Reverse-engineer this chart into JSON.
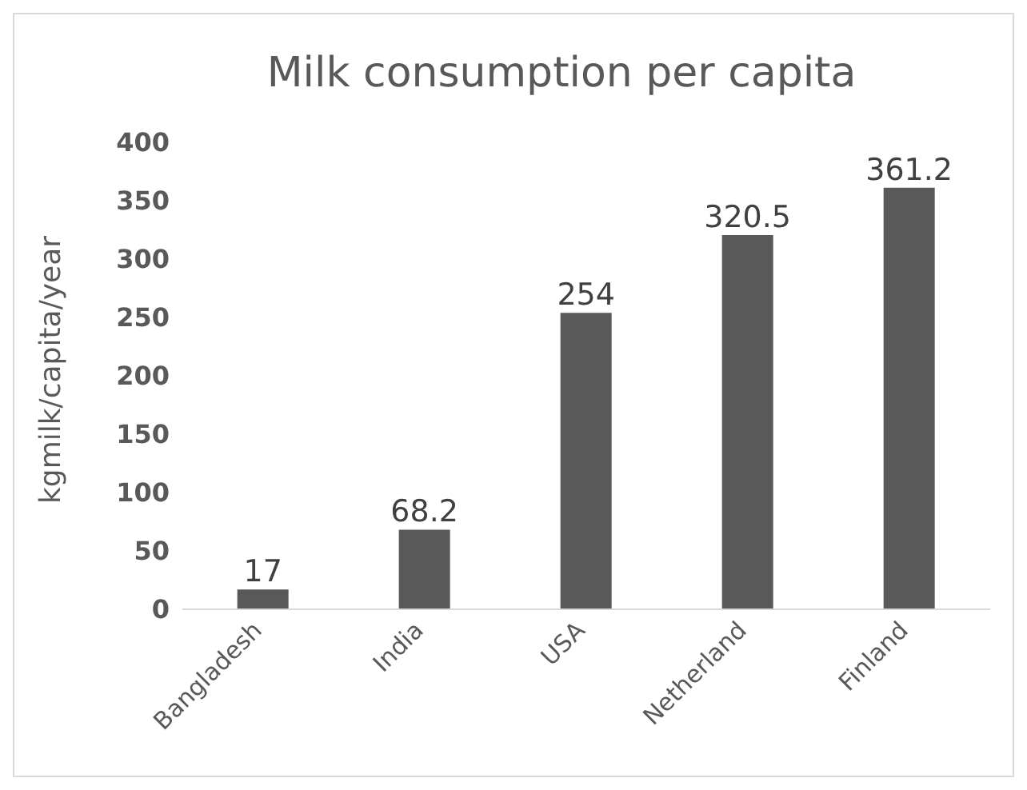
{
  "chart_data": {
    "type": "bar",
    "title": "Milk consumption per capita",
    "ylabel": "kgmilk/capita/year",
    "categories": [
      "Bangladesh",
      "India",
      "USA",
      "Netherland",
      "Finland"
    ],
    "values": [
      17,
      68.2,
      254,
      320.5,
      361.2
    ],
    "color": "#595959",
    "ylim": [
      0,
      400
    ],
    "yticks": [
      0,
      50,
      100,
      150,
      200,
      250,
      300,
      350,
      400
    ],
    "grid": false,
    "legend": false,
    "data_labels": true
  }
}
